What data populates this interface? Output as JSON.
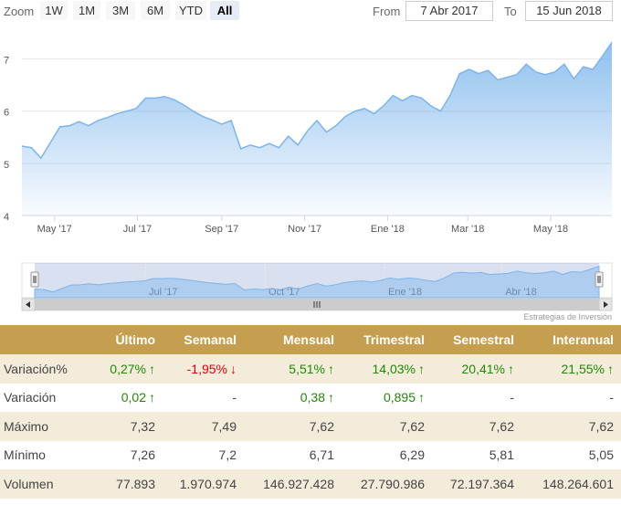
{
  "zoom": {
    "label": "Zoom",
    "buttons": [
      {
        "label": "1W",
        "active": false
      },
      {
        "label": "1M",
        "active": false
      },
      {
        "label": "3M",
        "active": false
      },
      {
        "label": "6M",
        "active": false
      },
      {
        "label": "YTD",
        "active": false
      },
      {
        "label": "All",
        "active": true
      }
    ]
  },
  "range": {
    "from_label": "From",
    "from_value": "7 Abr 2017",
    "to_label": "To",
    "to_value": "15 Jun 2018"
  },
  "credits": "Estrategias de Inversión",
  "colors": {
    "line": "#7cb5ec",
    "header": "#c59f4f",
    "shade": "#f3ecdb",
    "up": "#1e8a00",
    "down": "#e0000a"
  },
  "chart_data": {
    "type": "area",
    "yticks": [
      4,
      5,
      6,
      7
    ],
    "ylim": [
      4,
      7.5
    ],
    "xticks": [
      {
        "label": "May '17",
        "date": "2017-05-01"
      },
      {
        "label": "Jul '17",
        "date": "2017-07-01"
      },
      {
        "label": "Sep '17",
        "date": "2017-09-01"
      },
      {
        "label": "Nov '17",
        "date": "2017-11-01"
      },
      {
        "label": "Ene '18",
        "date": "2018-01-01"
      },
      {
        "label": "Mar '18",
        "date": "2018-03-01"
      },
      {
        "label": "May '18",
        "date": "2018-05-01"
      }
    ],
    "x_range": [
      "2017-04-07",
      "2018-06-15"
    ],
    "navigator_ticks": [
      {
        "label": "Jul '17",
        "date": "2017-07-01"
      },
      {
        "label": "Oct '17",
        "date": "2017-10-01"
      },
      {
        "label": "Ene '18",
        "date": "2018-01-01"
      },
      {
        "label": "Abr '18",
        "date": "2018-04-01"
      }
    ],
    "series": [
      {
        "x": [
          "2017-04-07",
          "2017-04-14",
          "2017-04-21",
          "2017-04-28",
          "2017-05-05",
          "2017-05-12",
          "2017-05-19",
          "2017-05-26",
          "2017-06-02",
          "2017-06-09",
          "2017-06-16",
          "2017-06-23",
          "2017-06-30",
          "2017-07-07",
          "2017-07-14",
          "2017-07-21",
          "2017-07-28",
          "2017-08-04",
          "2017-08-11",
          "2017-08-18",
          "2017-08-25",
          "2017-09-01",
          "2017-09-08",
          "2017-09-15",
          "2017-09-22",
          "2017-09-29",
          "2017-10-06",
          "2017-10-13",
          "2017-10-20",
          "2017-10-27",
          "2017-11-03",
          "2017-11-10",
          "2017-11-17",
          "2017-11-24",
          "2017-12-01",
          "2017-12-08",
          "2017-12-15",
          "2017-12-22",
          "2017-12-29",
          "2018-01-05",
          "2018-01-12",
          "2018-01-19",
          "2018-01-26",
          "2018-02-02",
          "2018-02-09",
          "2018-02-16",
          "2018-02-23",
          "2018-03-02",
          "2018-03-09",
          "2018-03-16",
          "2018-03-23",
          "2018-03-30",
          "2018-04-06",
          "2018-04-13",
          "2018-04-20",
          "2018-04-27",
          "2018-05-04",
          "2018-05-11",
          "2018-05-18",
          "2018-05-25",
          "2018-06-01",
          "2018-06-08",
          "2018-06-15"
        ],
        "values": [
          5.33,
          5.3,
          5.1,
          5.4,
          5.7,
          5.72,
          5.8,
          5.72,
          5.82,
          5.88,
          5.95,
          6.0,
          6.05,
          6.25,
          6.25,
          6.28,
          6.22,
          6.12,
          6.0,
          5.9,
          5.83,
          5.75,
          5.82,
          5.28,
          5.35,
          5.3,
          5.38,
          5.3,
          5.52,
          5.35,
          5.62,
          5.82,
          5.6,
          5.72,
          5.9,
          6.0,
          6.05,
          5.95,
          6.1,
          6.3,
          6.2,
          6.3,
          6.25,
          6.1,
          6.0,
          6.3,
          6.72,
          6.8,
          6.72,
          6.78,
          6.6,
          6.65,
          6.7,
          6.9,
          6.75,
          6.7,
          6.75,
          6.9,
          6.62,
          6.85,
          6.8,
          7.05,
          7.32
        ]
      }
    ]
  },
  "table": {
    "headers": [
      "",
      "Último",
      "Semanal",
      "Mensual",
      "Trimestral",
      "Semestral",
      "Interanual"
    ],
    "rows": [
      {
        "label": "Variación%",
        "cells": [
          {
            "text": "0,27%",
            "dir": "up"
          },
          {
            "text": "-1,95%",
            "dir": "down"
          },
          {
            "text": "5,51%",
            "dir": "up"
          },
          {
            "text": "14,03%",
            "dir": "up"
          },
          {
            "text": "20,41%",
            "dir": "up"
          },
          {
            "text": "21,55%",
            "dir": "up"
          }
        ]
      },
      {
        "label": "Variación",
        "cells": [
          {
            "text": "0,02",
            "dir": "up"
          },
          {
            "text": "-",
            "dir": ""
          },
          {
            "text": "0,38",
            "dir": "up"
          },
          {
            "text": "0,895",
            "dir": "up"
          },
          {
            "text": "-",
            "dir": ""
          },
          {
            "text": "-",
            "dir": ""
          }
        ]
      },
      {
        "label": "Máximo",
        "cells": [
          {
            "text": "7,32",
            "dir": ""
          },
          {
            "text": "7,49",
            "dir": ""
          },
          {
            "text": "7,62",
            "dir": ""
          },
          {
            "text": "7,62",
            "dir": ""
          },
          {
            "text": "7,62",
            "dir": ""
          },
          {
            "text": "7,62",
            "dir": ""
          }
        ]
      },
      {
        "label": "Mínimo",
        "cells": [
          {
            "text": "7,26",
            "dir": ""
          },
          {
            "text": "7,2",
            "dir": ""
          },
          {
            "text": "6,71",
            "dir": ""
          },
          {
            "text": "6,29",
            "dir": ""
          },
          {
            "text": "5,81",
            "dir": ""
          },
          {
            "text": "5,05",
            "dir": ""
          }
        ]
      },
      {
        "label": "Volumen",
        "cells": [
          {
            "text": "77.893",
            "dir": ""
          },
          {
            "text": "1.970.974",
            "dir": ""
          },
          {
            "text": "146.927.428",
            "dir": ""
          },
          {
            "text": "27.790.986",
            "dir": ""
          },
          {
            "text": "72.197.364",
            "dir": ""
          },
          {
            "text": "148.264.601",
            "dir": ""
          }
        ]
      }
    ]
  }
}
